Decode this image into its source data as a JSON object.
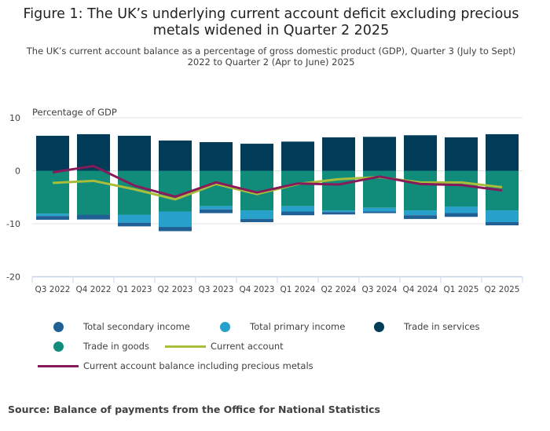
{
  "chart_data": {
    "type": "bar",
    "title": "Figure 1: The UK’s underlying current account deficit excluding precious metals widened in Quarter 2 2025",
    "subtitle": "The UK’s current account balance as a percentage of gross domestic product (GDP), Quarter 3 (July to Sept) 2022 to Quarter 2 (Apr to June) 2025",
    "ylabel": "Percentage of GDP",
    "ylim": [
      -20,
      10
    ],
    "yticks": [
      10,
      0,
      -10,
      -20
    ],
    "categories": [
      "Q3 2022",
      "Q4 2022",
      "Q1 2023",
      "Q2 2023",
      "Q3 2023",
      "Q4 2023",
      "Q1 2024",
      "Q2 2024",
      "Q3 2024",
      "Q4 2024",
      "Q1 2025",
      "Q2 2025"
    ],
    "series": [
      {
        "name": "Trade in services",
        "kind": "bar",
        "color": "#003c57",
        "values": [
          6.6,
          6.9,
          6.6,
          5.7,
          5.4,
          5.1,
          5.5,
          6.3,
          6.4,
          6.7,
          6.3,
          6.9
        ]
      },
      {
        "name": "Trade in goods",
        "kind": "bar",
        "color": "#118c7b",
        "values": [
          -8.1,
          -8.3,
          -8.3,
          -7.7,
          -6.7,
          -7.5,
          -6.7,
          -7.5,
          -7.0,
          -7.5,
          -6.8,
          -7.5
        ]
      },
      {
        "name": "Total primary income",
        "kind": "bar",
        "color": "#27a0cc",
        "values": [
          -0.45,
          0,
          -1.5,
          -2.9,
          -0.6,
          -1.6,
          -1.0,
          -0.3,
          -0.7,
          -0.9,
          -1.2,
          -2.2
        ]
      },
      {
        "name": "Total secondary income",
        "kind": "bar",
        "color": "#206095",
        "values": [
          -0.7,
          -0.9,
          -0.7,
          -0.8,
          -0.7,
          -0.6,
          -0.7,
          -0.45,
          -0.3,
          -0.7,
          -0.7,
          -0.6
        ]
      },
      {
        "name": "Current account",
        "kind": "line",
        "color": "#a8bd3a",
        "values": [
          -2.3,
          -1.9,
          -3.5,
          -5.4,
          -2.5,
          -4.4,
          -2.5,
          -1.6,
          -1.2,
          -2.2,
          -2.2,
          -3.1
        ]
      },
      {
        "name": "Current account balance including precious metals",
        "kind": "line",
        "color": "#871a5b",
        "values": [
          -0.3,
          0.9,
          -2.8,
          -4.9,
          -2.2,
          -4.1,
          -2.4,
          -2.6,
          -1.1,
          -2.5,
          -2.7,
          -3.7
        ]
      }
    ],
    "legend_order": [
      3,
      2,
      0,
      1,
      4,
      5
    ],
    "legend_placement": "bottom",
    "grid": true
  },
  "source": "Source: Balance of payments from the Office for National Statistics"
}
